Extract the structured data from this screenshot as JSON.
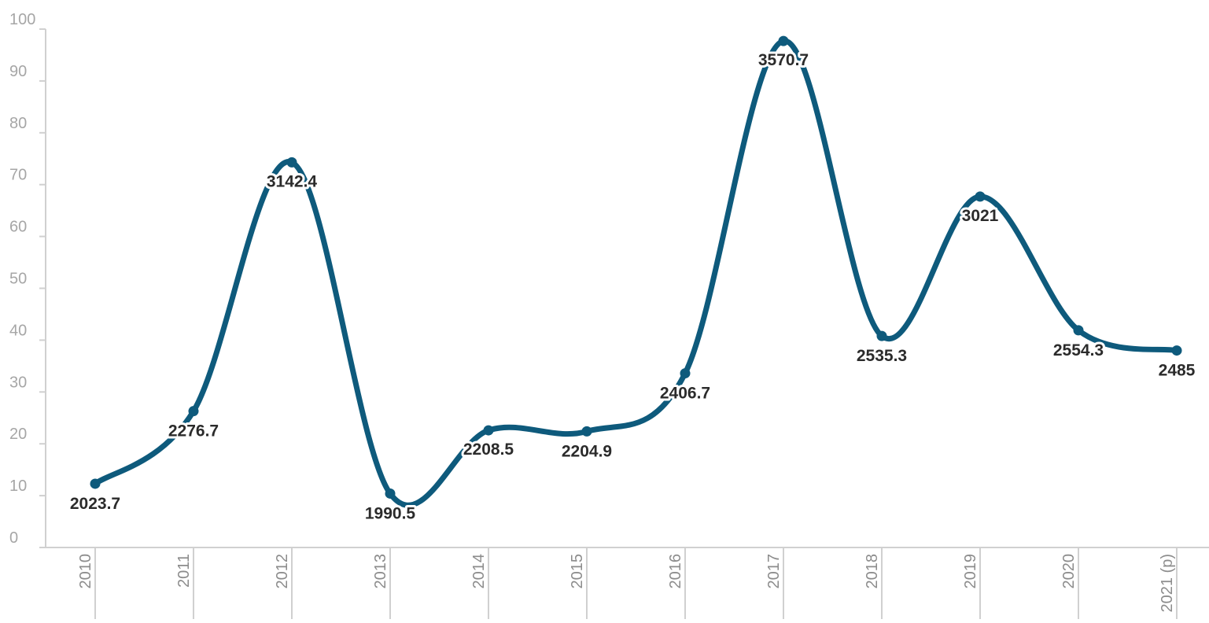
{
  "chart_data": {
    "type": "line",
    "title": "",
    "xlabel": "",
    "ylabel": "",
    "categories": [
      "2010",
      "2011",
      "2012",
      "2013",
      "2014",
      "2015",
      "2016",
      "2017",
      "2018",
      "2019",
      "2020",
      "2021 (p)"
    ],
    "y_ticks": [
      "0",
      "10",
      "20",
      "30",
      "40",
      "50",
      "60",
      "70",
      "80",
      "90",
      "100"
    ],
    "ylim": [
      0,
      100
    ],
    "grid": false,
    "smooth": true,
    "series": [
      {
        "values": [
          12.3,
          26.3,
          74.3,
          10.4,
          22.6,
          22.4,
          33.6,
          97.7,
          40.8,
          67.7,
          41.9,
          38.0
        ],
        "labels": [
          "2023.7",
          "2276.7",
          "3142.4",
          "1990.5",
          "2208.5",
          "2204.9",
          "2406.7",
          "3570.7",
          "2535.3",
          "3021",
          "2554.3",
          "2485"
        ],
        "color": "#0e5a7c"
      }
    ],
    "axis_color": "#d0d0d0"
  }
}
